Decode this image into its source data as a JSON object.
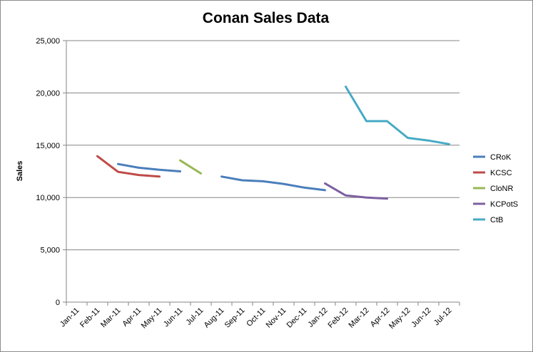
{
  "chart_data": {
    "type": "line",
    "title": "Conan Sales Data",
    "xlabel": "",
    "ylabel": "Sales",
    "ylim": [
      0,
      25000
    ],
    "yticks": [
      0,
      5000,
      10000,
      15000,
      20000,
      25000
    ],
    "ytick_labels": [
      "0",
      "5,000",
      "10,000",
      "15,000",
      "20,000",
      "25,000"
    ],
    "categories": [
      "Jan-11",
      "Feb-11",
      "Mar-11",
      "Apr-11",
      "May-11",
      "Jun-11",
      "Jul-11",
      "Aug-11",
      "Sep-11",
      "Oct-11",
      "Nov-11",
      "Dec-11",
      "Jan-12",
      "Feb-12",
      "Mar-12",
      "Apr-12",
      "May-12",
      "Jun-12",
      "Jul-12"
    ],
    "grid": true,
    "legend_position": "right",
    "series": [
      {
        "name": "CRoK",
        "color": "#4a7ebb",
        "values": [
          null,
          null,
          13200,
          12850,
          12650,
          12500,
          null,
          12000,
          11650,
          11550,
          11300,
          10950,
          10700,
          null,
          null,
          null,
          null,
          null,
          null
        ]
      },
      {
        "name": "KCSC",
        "color": "#be4b48",
        "values": [
          null,
          13950,
          12450,
          12150,
          12000,
          null,
          null,
          null,
          null,
          null,
          null,
          null,
          null,
          null,
          null,
          null,
          null,
          null,
          null
        ]
      },
      {
        "name": "CloNR",
        "color": "#98b954",
        "values": [
          null,
          null,
          null,
          null,
          null,
          13550,
          12300,
          null,
          null,
          null,
          null,
          null,
          null,
          null,
          null,
          null,
          null,
          null,
          null
        ]
      },
      {
        "name": "KCPotS",
        "color": "#7d60a0",
        "values": [
          null,
          null,
          null,
          null,
          null,
          null,
          null,
          null,
          null,
          null,
          null,
          null,
          11350,
          10200,
          10000,
          9900,
          null,
          null,
          null
        ]
      },
      {
        "name": "CtB",
        "color": "#46aac5",
        "values": [
          null,
          null,
          null,
          null,
          null,
          null,
          null,
          null,
          null,
          null,
          null,
          null,
          null,
          20600,
          17300,
          17300,
          15700,
          15450,
          15100
        ]
      }
    ]
  }
}
